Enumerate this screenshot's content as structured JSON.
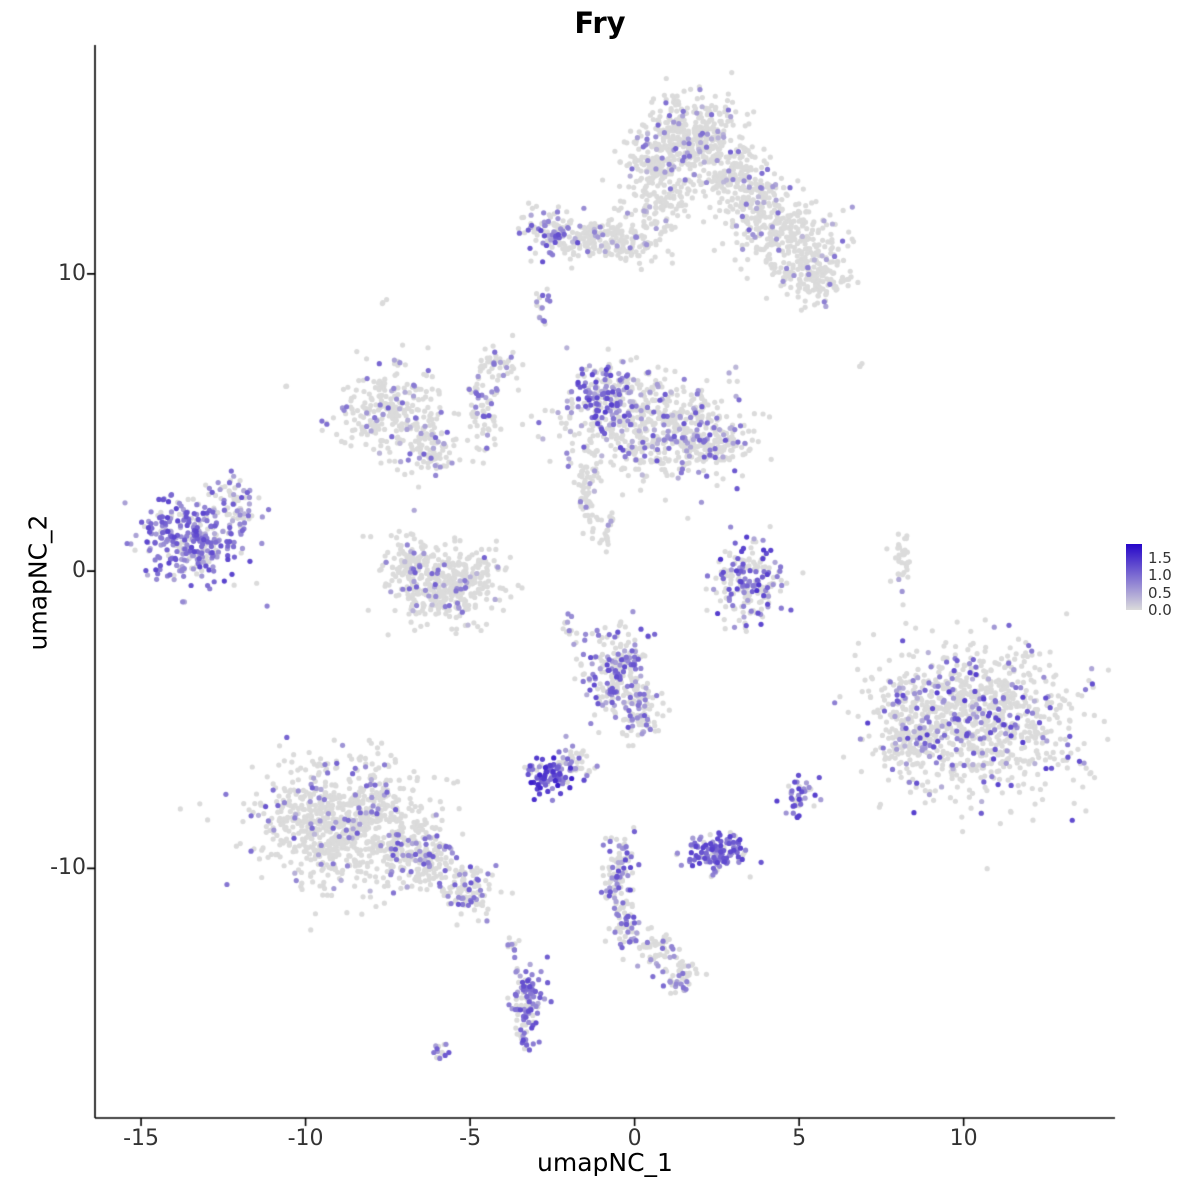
{
  "title": "Fry",
  "chart_data": {
    "type": "scatter",
    "title": "Fry",
    "subtitle": "",
    "xlabel": "umapNC_1",
    "ylabel": "umapNC_2",
    "xlim": [
      -16.4,
      14.6
    ],
    "ylim": [
      -18.4,
      17.7
    ],
    "x_ticks": [
      -15,
      -10,
      -5,
      0,
      5,
      10
    ],
    "y_ticks": [
      10,
      0,
      -10
    ],
    "grid": false,
    "point_color_zero": "#DBDBDB",
    "legend": {
      "position": "right",
      "range": [
        0.0,
        1.9
      ],
      "tick_values": [
        1.5,
        1.0,
        0.5,
        0.0
      ],
      "tick_labels": [
        "1.5",
        "1.0",
        "0.5",
        "0.0"
      ],
      "low_color": "#DBDBDB",
      "high_color": "#2606C9"
    },
    "cluster_fields": [
      "center_x",
      "center_y",
      "sd_x",
      "sd_y",
      "n_cells",
      "frac_expressing",
      "expr_min",
      "expr_max"
    ],
    "clusters": [
      [
        1.7,
        14.6,
        0.85,
        0.75,
        380,
        0.12,
        0.3,
        1.1
      ],
      [
        0.6,
        13.6,
        0.5,
        0.5,
        120,
        0.1,
        0.3,
        1.0
      ],
      [
        2.9,
        13.3,
        0.5,
        0.5,
        110,
        0.1,
        0.3,
        1.0
      ],
      [
        3.8,
        12.4,
        0.6,
        0.5,
        150,
        0.1,
        0.3,
        1.1
      ],
      [
        4.7,
        11.2,
        0.8,
        0.6,
        220,
        0.08,
        0.3,
        1.0
      ],
      [
        5.5,
        9.9,
        0.6,
        0.45,
        150,
        0.06,
        0.3,
        0.9
      ],
      [
        -2.6,
        11.4,
        0.45,
        0.4,
        90,
        0.35,
        0.4,
        1.3
      ],
      [
        -1.6,
        11.2,
        0.6,
        0.3,
        80,
        0.1,
        0.3,
        0.9
      ],
      [
        -0.5,
        11.1,
        0.9,
        0.35,
        140,
        0.08,
        0.3,
        0.9
      ],
      [
        0.8,
        12.3,
        0.5,
        0.5,
        90,
        0.08,
        0.3,
        0.9
      ],
      [
        -2.8,
        8.9,
        0.12,
        0.3,
        18,
        0.5,
        0.5,
        1.2
      ],
      [
        -7.4,
        5.4,
        0.8,
        0.7,
        260,
        0.15,
        0.3,
        1.1
      ],
      [
        -6.3,
        4.1,
        0.45,
        0.5,
        90,
        0.2,
        0.3,
        1.1
      ],
      [
        -4.6,
        5.4,
        0.25,
        0.95,
        70,
        0.3,
        0.4,
        1.2
      ],
      [
        -4.1,
        6.9,
        0.3,
        0.3,
        40,
        0.2,
        0.3,
        1.0
      ],
      [
        0.5,
        4.9,
        1.25,
        0.9,
        560,
        0.22,
        0.3,
        1.2
      ],
      [
        -0.9,
        5.9,
        0.5,
        0.55,
        140,
        0.6,
        0.4,
        1.4
      ],
      [
        2.3,
        4.2,
        0.6,
        0.4,
        120,
        0.3,
        0.3,
        1.2
      ],
      [
        -1.5,
        2.5,
        0.15,
        0.55,
        50,
        0.1,
        0.3,
        0.8
      ],
      [
        -0.9,
        1.4,
        0.15,
        0.3,
        25,
        0.1,
        0.3,
        0.8
      ],
      [
        -5.7,
        -0.4,
        0.9,
        0.65,
        390,
        0.12,
        0.3,
        1.1
      ],
      [
        -6.8,
        0.4,
        0.3,
        0.5,
        70,
        0.25,
        0.3,
        1.2
      ],
      [
        -13.4,
        1.1,
        0.8,
        0.75,
        330,
        0.75,
        0.35,
        1.35
      ],
      [
        -12.1,
        2.3,
        0.3,
        0.5,
        50,
        0.4,
        0.3,
        1.2
      ],
      [
        3.4,
        -0.5,
        0.55,
        0.7,
        200,
        0.45,
        0.4,
        1.5
      ],
      [
        -0.6,
        -3.3,
        0.5,
        0.75,
        210,
        0.35,
        0.4,
        1.3
      ],
      [
        0.2,
        -4.7,
        0.35,
        0.5,
        90,
        0.3,
        0.4,
        1.2
      ],
      [
        -2.65,
        -6.9,
        0.3,
        0.27,
        75,
        0.85,
        0.7,
        1.7
      ],
      [
        -1.9,
        -6.5,
        0.4,
        0.3,
        50,
        0.3,
        0.4,
        1.1
      ],
      [
        5.0,
        -7.6,
        0.22,
        0.38,
        40,
        0.7,
        0.5,
        1.4
      ],
      [
        2.5,
        -9.5,
        0.5,
        0.32,
        130,
        0.75,
        0.5,
        1.4
      ],
      [
        -8.8,
        -8.4,
        1.25,
        1.05,
        860,
        0.1,
        0.3,
        1.2
      ],
      [
        -6.4,
        -9.7,
        0.6,
        0.5,
        180,
        0.25,
        0.3,
        1.2
      ],
      [
        -5.0,
        -10.8,
        0.45,
        0.45,
        100,
        0.3,
        0.4,
        1.2
      ],
      [
        -0.5,
        -10.2,
        0.22,
        0.7,
        95,
        0.4,
        0.4,
        1.3
      ],
      [
        -0.2,
        -11.8,
        0.22,
        0.45,
        55,
        0.4,
        0.4,
        1.2
      ],
      [
        0.7,
        -12.8,
        0.3,
        0.4,
        50,
        0.15,
        0.3,
        1.0
      ],
      [
        1.4,
        -13.6,
        0.28,
        0.3,
        45,
        0.2,
        0.3,
        1.0
      ],
      [
        -3.3,
        -14.6,
        0.24,
        0.7,
        115,
        0.6,
        0.4,
        1.3
      ],
      [
        -5.9,
        -16.1,
        0.13,
        0.16,
        15,
        0.6,
        0.5,
        1.2
      ],
      [
        10.4,
        -5.0,
        1.5,
        1.3,
        950,
        0.18,
        0.35,
        1.4
      ],
      [
        8.3,
        -5.2,
        0.5,
        0.85,
        160,
        0.25,
        0.35,
        1.3
      ],
      [
        8.2,
        0.3,
        0.16,
        0.6,
        35,
        0.1,
        0.3,
        0.9
      ],
      [
        -7.6,
        9.1,
        0.1,
        0.1,
        3,
        0.0,
        0,
        0
      ],
      [
        -10.6,
        6.2,
        0.08,
        0.08,
        2,
        0.0,
        0,
        0
      ],
      [
        6.9,
        6.9,
        0.1,
        0.1,
        3,
        0.3,
        0.3,
        0.8
      ],
      [
        -3.7,
        -12.6,
        0.15,
        0.2,
        10,
        0.2,
        0.3,
        0.8
      ],
      [
        -2.0,
        -1.9,
        0.12,
        0.3,
        12,
        0.2,
        0.3,
        0.8
      ]
    ]
  }
}
